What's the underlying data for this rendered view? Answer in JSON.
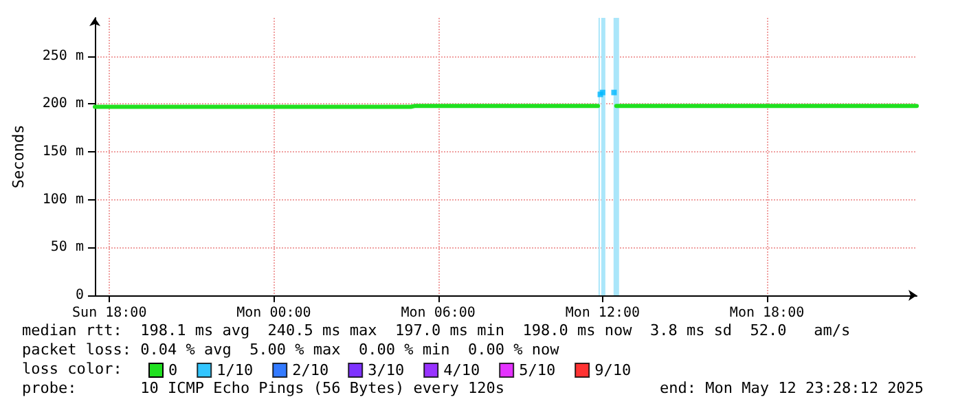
{
  "chart_data": {
    "type": "line",
    "ylabel": "Seconds",
    "legend_title": "loss color:",
    "x": [
      "2025-05-11T17:28",
      "2025-05-11T18:00",
      "2025-05-11T20:00",
      "2025-05-11T22:00",
      "2025-05-12T00:00",
      "2025-05-12T02:00",
      "2025-05-12T04:00",
      "2025-05-12T05:00",
      "2025-05-12T05:10",
      "2025-05-12T08:00",
      "2025-05-12T11:30",
      "2025-05-12T11:35",
      "2025-05-12T11:40",
      "2025-05-12T11:45",
      "2025-05-12T11:50",
      "2025-05-12T11:55",
      "2025-05-12T12:00",
      "2025-05-12T12:25",
      "2025-05-12T12:30",
      "2025-05-12T12:40",
      "2025-05-12T15:00",
      "2025-05-12T18:00",
      "2025-05-12T21:00",
      "2025-05-12T23:28"
    ],
    "series": [
      {
        "name": "0",
        "color": "#20e020",
        "values": [
          197,
          197,
          197,
          197,
          197,
          197,
          197,
          197,
          198,
          198,
          198,
          198,
          198,
          198,
          198,
          null,
          null,
          null,
          198,
          198,
          198,
          198,
          198,
          198
        ]
      },
      {
        "name": "1/10",
        "type": "scatter",
        "marker": "square",
        "color": "#00b8ff",
        "values": [
          null,
          null,
          null,
          null,
          null,
          null,
          null,
          null,
          null,
          null,
          null,
          null,
          null,
          null,
          null,
          210,
          212,
          212,
          null,
          null,
          null,
          null,
          null,
          null
        ]
      },
      {
        "name": "2/10",
        "type": "scatter",
        "marker": "square",
        "color": "#0059ff",
        "values": [
          null,
          null,
          null,
          null,
          null,
          null,
          null,
          null,
          null,
          null,
          null,
          null,
          null,
          null,
          null,
          null,
          null,
          null,
          null,
          null,
          null,
          null,
          null,
          null
        ]
      },
      {
        "name": "3/10",
        "type": "scatter",
        "marker": "square",
        "color": "#5e00ff",
        "values": [
          null,
          null,
          null,
          null,
          null,
          null,
          null,
          null,
          null,
          null,
          null,
          null,
          null,
          null,
          null,
          null,
          null,
          null,
          null,
          null,
          null,
          null,
          null,
          null
        ]
      },
      {
        "name": "4/10",
        "type": "scatter",
        "marker": "square",
        "color": "#7e00ff",
        "values": [
          null,
          null,
          null,
          null,
          null,
          null,
          null,
          null,
          null,
          null,
          null,
          null,
          null,
          null,
          null,
          null,
          null,
          null,
          null,
          null,
          null,
          null,
          null,
          null
        ]
      },
      {
        "name": "5/10",
        "type": "scatter",
        "marker": "square",
        "color": "#dd00ff",
        "values": [
          null,
          null,
          null,
          null,
          null,
          null,
          null,
          null,
          null,
          null,
          null,
          null,
          null,
          null,
          null,
          null,
          null,
          null,
          null,
          null,
          null,
          null,
          null,
          null
        ]
      },
      {
        "name": "9/10",
        "type": "scatter",
        "marker": "square",
        "color": "#ff0000",
        "values": [
          null,
          null,
          null,
          null,
          null,
          null,
          null,
          null,
          null,
          null,
          null,
          null,
          null,
          null,
          null,
          null,
          null,
          null,
          null,
          null,
          null,
          null,
          null,
          null
        ]
      }
    ],
    "bands": [
      {
        "axis": "x",
        "from": "2025-05-12T11:51",
        "to": "2025-05-12T11:54",
        "color": "#aae6fa"
      },
      {
        "axis": "x",
        "from": "2025-05-12T11:57",
        "to": "2025-05-12T12:06",
        "color": "#aae6fa"
      },
      {
        "axis": "x",
        "from": "2025-05-12T12:24",
        "to": "2025-05-12T12:36",
        "color": "#aae6fa"
      }
    ],
    "xlim": [
      "2025-05-11T17:28",
      "2025-05-12T23:28"
    ],
    "xticks": [
      {
        "value": "2025-05-11T18:00",
        "label": "Sun 18:00"
      },
      {
        "value": "2025-05-12T00:00",
        "label": "Mon 00:00"
      },
      {
        "value": "2025-05-12T06:00",
        "label": "Mon 06:00"
      },
      {
        "value": "2025-05-12T12:00",
        "label": "Mon 12:00"
      },
      {
        "value": "2025-05-12T18:00",
        "label": "Mon 18:00"
      }
    ],
    "ylim": [
      0,
      290
    ],
    "yticks": [
      {
        "value": 0,
        "label": "0"
      },
      {
        "value": 50,
        "label": "50 m"
      },
      {
        "value": 100,
        "label": "100 m"
      },
      {
        "value": 150,
        "label": "150 m"
      },
      {
        "value": 200,
        "label": "200 m"
      },
      {
        "value": 250,
        "label": "250 m"
      }
    ],
    "grid": true,
    "legend": "bottom",
    "marker": "none",
    "line_style": "solid",
    "annotations": [
      "median rtt:  198.1 ms avg  240.5 ms max  197.0 ms min  198.0 ms now  3.8 ms sd  52.0   am/s",
      "packet loss: 0.04 % avg  5.00 % max  0.00 % min  0.00 % now",
      "probe:       10 ICMP Echo Pings (56 Bytes) every 120s",
      "end: Mon May 12 23:28:12 2025"
    ]
  }
}
